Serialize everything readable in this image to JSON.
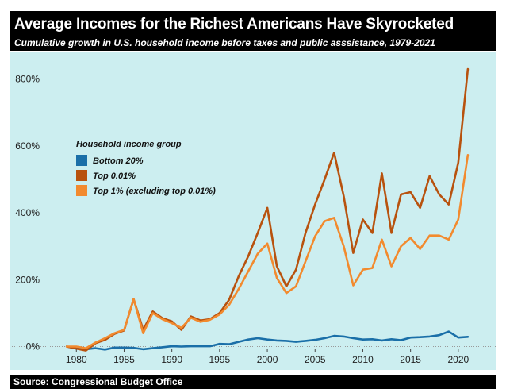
{
  "header": {
    "title": "Average Incomes for the Richest Americans Have Skyrocketed",
    "subtitle": "Cumulative growth in U.S. household income before taxes and public asssistance, 1979-2021"
  },
  "footer": {
    "source": "Source: Congressional Budget Office"
  },
  "chart_data": {
    "type": "line",
    "title": "Average Incomes for the Richest Americans Have Skyrocketed",
    "subtitle": "Cumulative growth in U.S. household income before taxes and public asssistance, 1979-2021",
    "xlabel": "",
    "ylabel": "",
    "x": [
      1979,
      1980,
      1981,
      1982,
      1983,
      1984,
      1985,
      1986,
      1987,
      1988,
      1989,
      1990,
      1991,
      1992,
      1993,
      1994,
      1995,
      1996,
      1997,
      1998,
      1999,
      2000,
      2001,
      2002,
      2003,
      2004,
      2005,
      2006,
      2007,
      2008,
      2009,
      2010,
      2011,
      2012,
      2013,
      2014,
      2015,
      2016,
      2017,
      2018,
      2019,
      2020,
      2021
    ],
    "xlim": [
      1973,
      2024
    ],
    "ylim": [
      -70,
      880
    ],
    "x_ticks": [
      1980,
      1985,
      1990,
      1995,
      2000,
      2005,
      2010,
      2015,
      2020
    ],
    "x_tick_labels": [
      "1980",
      "1985",
      "1990",
      "1995",
      "2000",
      "2005",
      "2010",
      "2015",
      "2020"
    ],
    "y_ticks": [
      0,
      200,
      400,
      600,
      800
    ],
    "y_tick_labels": [
      "0%",
      "200%",
      "400%",
      "600%",
      "800%"
    ],
    "grid": "none",
    "zero_line_color": "#999999",
    "legend": {
      "title": "Household income group",
      "placement": "upper-left"
    },
    "series": [
      {
        "name": "Bottom 20%",
        "color": "#1a6fa8",
        "values": [
          0,
          -6,
          -8,
          -5,
          -9,
          -3,
          -3,
          -4,
          -8,
          -5,
          -2,
          1,
          0,
          1,
          1,
          1,
          8,
          7,
          14,
          21,
          25,
          21,
          18,
          17,
          14,
          17,
          20,
          25,
          32,
          30,
          25,
          21,
          22,
          18,
          22,
          19,
          27,
          28,
          30,
          34,
          45,
          27,
          29
        ]
      },
      {
        "name": "Top 0.01%",
        "color": "#b8520e",
        "values": [
          0,
          -6,
          -12,
          10,
          20,
          38,
          48,
          142,
          50,
          105,
          85,
          75,
          50,
          90,
          78,
          82,
          100,
          140,
          210,
          270,
          340,
          415,
          240,
          180,
          230,
          340,
          425,
          500,
          580,
          450,
          280,
          380,
          340,
          518,
          340,
          455,
          462,
          415,
          510,
          455,
          425,
          550,
          830
        ]
      },
      {
        "name": "Top 1% (excluding top 0.01%)",
        "color": "#f28a2e",
        "values": [
          0,
          0,
          -5,
          12,
          25,
          40,
          50,
          142,
          40,
          100,
          82,
          70,
          56,
          86,
          74,
          80,
          96,
          125,
          172,
          225,
          278,
          308,
          205,
          160,
          180,
          255,
          330,
          375,
          385,
          300,
          183,
          230,
          235,
          320,
          240,
          300,
          325,
          292,
          332,
          332,
          320,
          380,
          573
        ]
      }
    ]
  }
}
